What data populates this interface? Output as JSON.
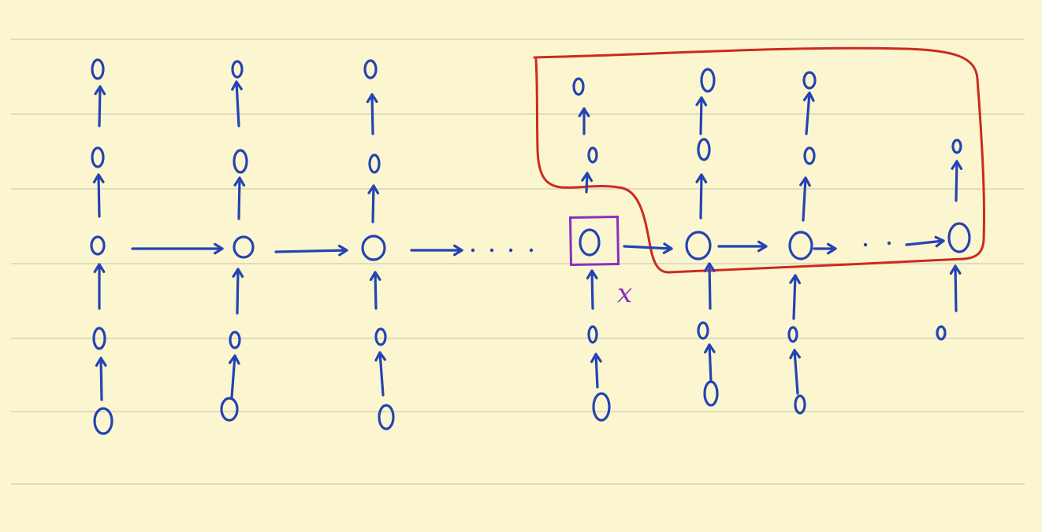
{
  "page": {
    "title": "",
    "paper_color": "#fbf6cf",
    "rule_color": "#cfccb4",
    "ink_color": "#2443b4",
    "highlight_color": "#8a2fc2",
    "region_color": "#cc2a22"
  },
  "diagram": {
    "nodes": {
      "symbol": "0",
      "columns": 7,
      "hidden_row_nodes": 7,
      "highlighted_node_label": "x"
    },
    "connectors": {
      "ellipsis": "· · · ·"
    },
    "region": {
      "shape": "closed freehand loop around columns 4–7 above the hidden row"
    },
    "icons": [
      "up-arrow-icon",
      "right-arrow-icon",
      "selection-box-icon"
    ]
  }
}
